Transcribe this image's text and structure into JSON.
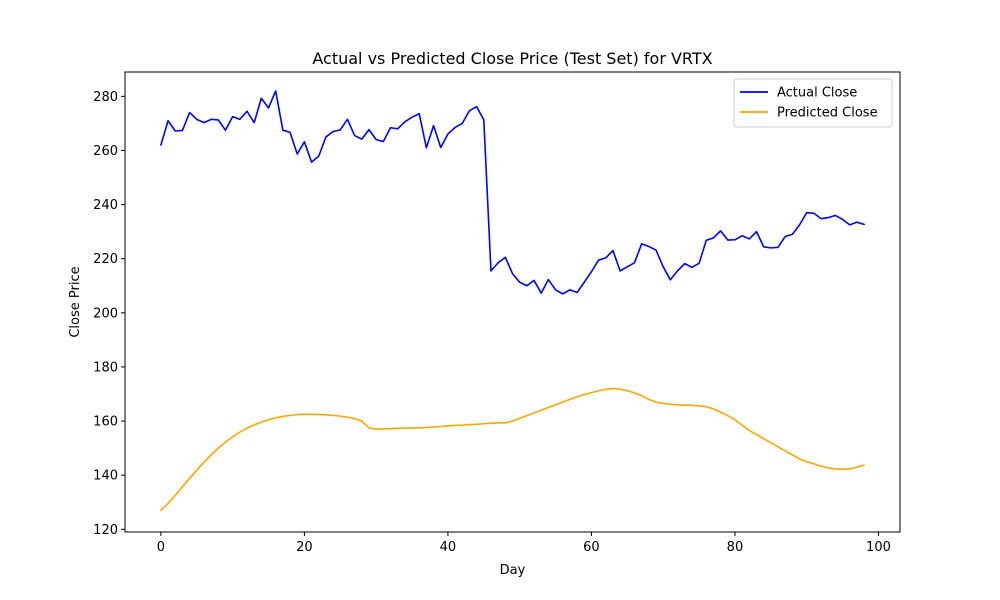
{
  "chart_data": {
    "type": "line",
    "title": "Actual vs Predicted Close Price (Test Set) for VRTX",
    "xlabel": "Day",
    "ylabel": "Close Price",
    "xlim": [
      -5,
      103
    ],
    "ylim": [
      119,
      289
    ],
    "xticks": [
      0,
      20,
      40,
      60,
      80,
      100
    ],
    "yticks": [
      120,
      140,
      160,
      180,
      200,
      220,
      240,
      260,
      280
    ],
    "grid": false,
    "legend_position": "upper right",
    "series": [
      {
        "name": "Actual Close",
        "color": "#0000ff",
        "x": [
          0,
          1,
          2,
          3,
          4,
          5,
          6,
          7,
          8,
          9,
          10,
          11,
          12,
          13,
          14,
          15,
          16,
          17,
          18,
          19,
          20,
          21,
          22,
          23,
          24,
          25,
          26,
          27,
          28,
          29,
          30,
          31,
          32,
          33,
          34,
          35,
          36,
          37,
          38,
          39,
          40,
          41,
          42,
          43,
          44,
          45,
          46,
          47,
          48,
          49,
          50,
          51,
          52,
          53,
          54,
          55,
          56,
          57,
          58,
          59,
          60,
          61,
          62,
          63,
          64,
          65,
          66,
          67,
          68,
          69,
          70,
          71,
          72,
          73,
          74,
          75,
          76,
          77,
          78,
          79,
          80,
          81,
          82,
          83,
          84,
          85,
          86,
          87,
          88,
          89,
          90,
          91,
          92,
          93,
          94,
          95,
          96,
          97,
          98
        ],
        "values": [
          262,
          271,
          267.2,
          267.4,
          274,
          271.5,
          270.3,
          271.5,
          271.3,
          267.5,
          272.5,
          271.5,
          274.5,
          270.3,
          279.3,
          275.7,
          282,
          267.5,
          266.7,
          258.7,
          263.2,
          255.7,
          257.9,
          265,
          267,
          267.6,
          271.5,
          265.5,
          264.2,
          267.7,
          264,
          263.3,
          268.4,
          268,
          270.6,
          272.3,
          273.6,
          261,
          269.2,
          261.1,
          266.1,
          268.5,
          270,
          274.7,
          276.2,
          271.3,
          215.5,
          218.5,
          220.5,
          214.5,
          211.3,
          210,
          212,
          207.3,
          212.3,
          208.5,
          207,
          208.5,
          207.5,
          211.3,
          215.2,
          219.5,
          220.3,
          223,
          215.5,
          217,
          218.5,
          225.5,
          224.5,
          223.2,
          217,
          212.2,
          215.5,
          218.2,
          216.8,
          218.3,
          226.8,
          227.7,
          230.3,
          226.9,
          227,
          228.5,
          227.3,
          230,
          224.4,
          224,
          224.2,
          228.2,
          229,
          232.5,
          237,
          236.8,
          234.8,
          235.2,
          236,
          234.5,
          232.5,
          233.5,
          232.7
        ]
      },
      {
        "name": "Predicted Close",
        "color": "#ffa500",
        "x": [
          0,
          1,
          2,
          3,
          4,
          5,
          6,
          7,
          8,
          9,
          10,
          11,
          12,
          13,
          14,
          15,
          16,
          17,
          18,
          19,
          20,
          21,
          22,
          23,
          24,
          25,
          26,
          27,
          28,
          29,
          30,
          31,
          32,
          33,
          34,
          35,
          36,
          37,
          38,
          39,
          40,
          41,
          42,
          43,
          44,
          45,
          46,
          47,
          48,
          49,
          50,
          51,
          52,
          53,
          54,
          55,
          56,
          57,
          58,
          59,
          60,
          61,
          62,
          63,
          64,
          65,
          66,
          67,
          68,
          69,
          70,
          71,
          72,
          73,
          74,
          75,
          76,
          77,
          78,
          79,
          80,
          81,
          82,
          83,
          84,
          85,
          86,
          87,
          88,
          89,
          90,
          91,
          92,
          93,
          94,
          95,
          96,
          97,
          98
        ],
        "values": [
          127,
          129.5,
          132.5,
          135.7,
          138.8,
          141.8,
          144.8,
          147.5,
          150,
          152.2,
          154.2,
          155.9,
          157.4,
          158.6,
          159.6,
          160.5,
          161.2,
          161.7,
          162.1,
          162.4,
          162.5,
          162.5,
          162.4,
          162.3,
          162.1,
          161.8,
          161.4,
          160.9,
          160,
          157.5,
          157,
          157.1,
          157.2,
          157.3,
          157.4,
          157.4,
          157.5,
          157.6,
          157.8,
          158,
          158.2,
          158.4,
          158.5,
          158.7,
          158.8,
          159,
          159.2,
          159.3,
          159.3,
          160,
          161,
          162,
          163,
          164,
          165,
          166,
          167,
          168,
          169,
          169.8,
          170.5,
          171.2,
          171.7,
          172,
          171.8,
          171.2,
          170.4,
          169.4,
          168,
          167,
          166.5,
          166.2,
          166,
          165.9,
          165.8,
          165.6,
          165.3,
          164.5,
          163.3,
          162,
          160.5,
          158.5,
          156.5,
          155,
          153.5,
          152,
          150.5,
          149,
          147.5,
          146,
          145,
          144.2,
          143.3,
          142.7,
          142.3,
          142.2,
          142.3,
          143,
          143.7
        ]
      }
    ]
  }
}
